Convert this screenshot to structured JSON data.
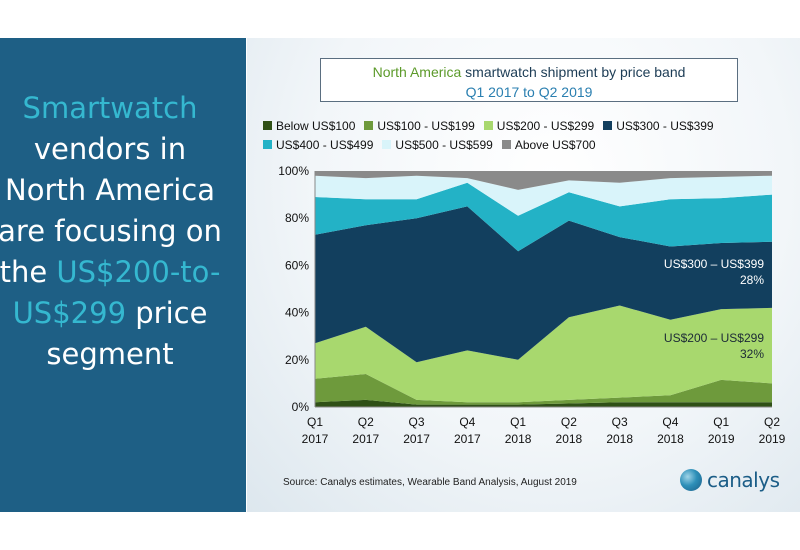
{
  "left_panel": {
    "line1": "Smartwatch",
    "line2": "vendors in",
    "line3": "North America",
    "line4": "are focusing on",
    "line5_pre": "the ",
    "line5_hl": "US$200-to-",
    "line6_hl": "US$299",
    "line6_post": " price",
    "line7": "segment"
  },
  "title": {
    "region": "North America",
    "rest": " smartwatch shipment by price band",
    "subtitle": "Q1 2017 to Q2 2019"
  },
  "source": "Source: Canalys estimates, Wearable Band Analysis, August 2019",
  "logo": "canalys",
  "chart_data": {
    "type": "area",
    "stacking": "percent",
    "x": [
      "Q1 2017",
      "Q2 2017",
      "Q3 2017",
      "Q4 2017",
      "Q1 2018",
      "Q2 2018",
      "Q3 2018",
      "Q4 2018",
      "Q1 2019",
      "Q2 2019"
    ],
    "x_tick_top": [
      "Q1",
      "Q2",
      "Q3",
      "Q4",
      "Q1",
      "Q2",
      "Q3",
      "Q4",
      "Q1",
      "Q2"
    ],
    "x_tick_bottom": [
      "2017",
      "2017",
      "2017",
      "2017",
      "2018",
      "2018",
      "2018",
      "2018",
      "2019",
      "2019"
    ],
    "ylim": [
      0,
      100
    ],
    "yticks": [
      "0%",
      "20%",
      "40%",
      "60%",
      "80%",
      "100%"
    ],
    "grid": false,
    "legend_position": "top",
    "series": [
      {
        "name": "Below US$100",
        "color": "#2f5016",
        "values": [
          2,
          3,
          1,
          1,
          1,
          1.5,
          2,
          2,
          2,
          2
        ]
      },
      {
        "name": "US$100 - US$199",
        "color": "#6e9a3c",
        "values": [
          10,
          11,
          2,
          1,
          1,
          1.5,
          2,
          3,
          9.5,
          8
        ]
      },
      {
        "name": "US$200 - US$299",
        "color": "#a8d86e",
        "values": [
          15,
          20,
          16,
          22,
          18,
          35,
          39,
          32,
          30,
          32
        ]
      },
      {
        "name": "US$300 - US$399",
        "color": "#123f5e",
        "values": [
          46,
          43,
          61,
          61,
          46,
          41,
          29,
          31,
          28,
          28
        ]
      },
      {
        "name": "US$400 - US$499",
        "color": "#23b2c6",
        "values": [
          16,
          11,
          8,
          10,
          15,
          12,
          13,
          20,
          19,
          20
        ]
      },
      {
        "name": "US$500 - US$599",
        "color": "#d9f4fa",
        "values": [
          9,
          9,
          10,
          2,
          11,
          5,
          10,
          9,
          9,
          8
        ]
      },
      {
        "name": "Above US$700",
        "color": "#8a8a8a",
        "values": [
          2,
          3,
          2,
          3,
          8,
          4,
          5,
          3,
          2.5,
          2
        ]
      }
    ],
    "annotations": [
      {
        "line1": "US$300 – US$399",
        "line2": "28%"
      },
      {
        "line1": "US$200 – US$299",
        "line2": "32%"
      }
    ]
  }
}
